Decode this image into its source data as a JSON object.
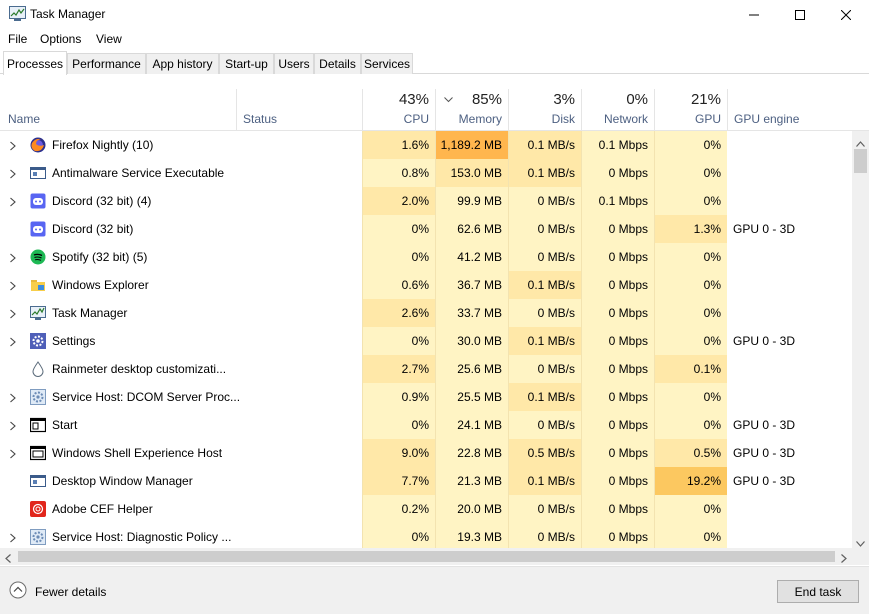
{
  "window": {
    "title": "Task Manager",
    "controls": [
      "minimize",
      "maximize",
      "close"
    ]
  },
  "menu": [
    "File",
    "Options",
    "View"
  ],
  "tabs": [
    {
      "label": "Processes",
      "active": true
    },
    {
      "label": "Performance"
    },
    {
      "label": "App history"
    },
    {
      "label": "Start-up"
    },
    {
      "label": "Users"
    },
    {
      "label": "Details"
    },
    {
      "label": "Services"
    }
  ],
  "columns": {
    "name": "Name",
    "status": "Status",
    "cpu": {
      "label": "CPU",
      "total": "43%"
    },
    "memory": {
      "label": "Memory",
      "total": "85%"
    },
    "disk": {
      "label": "Disk",
      "total": "3%"
    },
    "network": {
      "label": "Network",
      "total": "0%"
    },
    "gpu": {
      "label": "GPU",
      "total": "21%"
    },
    "gpu_engine": "GPU engine"
  },
  "processes": [
    {
      "name": "Firefox Nightly (10)",
      "icon": "firefox-icon",
      "expandable": true,
      "cpu": "1.6%",
      "memory": "1,189.2 MB",
      "disk": "0.1 MB/s",
      "network": "0.1 Mbps",
      "gpu": "0%",
      "gpu_engine": ""
    },
    {
      "name": "Antimalware Service Executable",
      "icon": "service-window-icon",
      "expandable": true,
      "cpu": "0.8%",
      "memory": "153.0 MB",
      "disk": "0.1 MB/s",
      "network": "0 Mbps",
      "gpu": "0%",
      "gpu_engine": ""
    },
    {
      "name": "Discord (32 bit) (4)",
      "icon": "discord-icon",
      "expandable": true,
      "cpu": "2.0%",
      "memory": "99.9 MB",
      "disk": "0 MB/s",
      "network": "0.1 Mbps",
      "gpu": "0%",
      "gpu_engine": ""
    },
    {
      "name": "Discord (32 bit)",
      "icon": "discord-icon",
      "expandable": false,
      "cpu": "0%",
      "memory": "62.6 MB",
      "disk": "0 MB/s",
      "network": "0 Mbps",
      "gpu": "1.3%",
      "gpu_engine": "GPU 0 - 3D"
    },
    {
      "name": "Spotify (32 bit) (5)",
      "icon": "spotify-icon",
      "expandable": true,
      "cpu": "0%",
      "memory": "41.2 MB",
      "disk": "0 MB/s",
      "network": "0 Mbps",
      "gpu": "0%",
      "gpu_engine": ""
    },
    {
      "name": "Windows Explorer",
      "icon": "folder-icon",
      "expandable": true,
      "cpu": "0.6%",
      "memory": "36.7 MB",
      "disk": "0.1 MB/s",
      "network": "0 Mbps",
      "gpu": "0%",
      "gpu_engine": ""
    },
    {
      "name": "Task Manager",
      "icon": "task-manager-icon",
      "expandable": true,
      "cpu": "2.6%",
      "memory": "33.7 MB",
      "disk": "0 MB/s",
      "network": "0 Mbps",
      "gpu": "0%",
      "gpu_engine": ""
    },
    {
      "name": "Settings",
      "icon": "settings-gear-icon",
      "expandable": true,
      "cpu": "0%",
      "memory": "30.0 MB",
      "disk": "0.1 MB/s",
      "network": "0 Mbps",
      "gpu": "0%",
      "gpu_engine": "GPU 0 - 3D"
    },
    {
      "name": "Rainmeter desktop customizati...",
      "icon": "droplet-icon",
      "expandable": false,
      "cpu": "2.7%",
      "memory": "25.6 MB",
      "disk": "0 MB/s",
      "network": "0 Mbps",
      "gpu": "0.1%",
      "gpu_engine": ""
    },
    {
      "name": "Service Host: DCOM Server Proc...",
      "icon": "service-gear-icon",
      "expandable": true,
      "cpu": "0.9%",
      "memory": "25.5 MB",
      "disk": "0.1 MB/s",
      "network": "0 Mbps",
      "gpu": "0%",
      "gpu_engine": ""
    },
    {
      "name": "Start",
      "icon": "start-window-icon",
      "expandable": true,
      "cpu": "0%",
      "memory": "24.1 MB",
      "disk": "0 MB/s",
      "network": "0 Mbps",
      "gpu": "0%",
      "gpu_engine": "GPU 0 - 3D"
    },
    {
      "name": "Windows Shell Experience Host",
      "icon": "shell-window-icon",
      "expandable": true,
      "cpu": "9.0%",
      "memory": "22.8 MB",
      "disk": "0.5 MB/s",
      "network": "0 Mbps",
      "gpu": "0.5%",
      "gpu_engine": "GPU 0 - 3D"
    },
    {
      "name": "Desktop Window Manager",
      "icon": "service-window-icon",
      "expandable": false,
      "cpu": "7.7%",
      "memory": "21.3 MB",
      "disk": "0.1 MB/s",
      "network": "0 Mbps",
      "gpu": "19.2%",
      "gpu_engine": "GPU 0 - 3D"
    },
    {
      "name": "Adobe CEF Helper",
      "icon": "adobe-icon",
      "expandable": false,
      "cpu": "0.2%",
      "memory": "20.0 MB",
      "disk": "0 MB/s",
      "network": "0 Mbps",
      "gpu": "0%",
      "gpu_engine": ""
    },
    {
      "name": "Service Host: Diagnostic Policy ...",
      "icon": "service-gear-icon",
      "expandable": true,
      "cpu": "0%",
      "memory": "19.3 MB",
      "disk": "0 MB/s",
      "network": "0 Mbps",
      "gpu": "0%",
      "gpu_engine": ""
    }
  ],
  "footer": {
    "fewer_details": "Fewer details",
    "end_task": "End task"
  },
  "colors": {
    "heat_light": "#fff4c4",
    "heat_mid": "#ffe8a8",
    "heat_high": "#fcc860",
    "heat_orange": "#ffb64e",
    "header_label": "#4d6082"
  }
}
